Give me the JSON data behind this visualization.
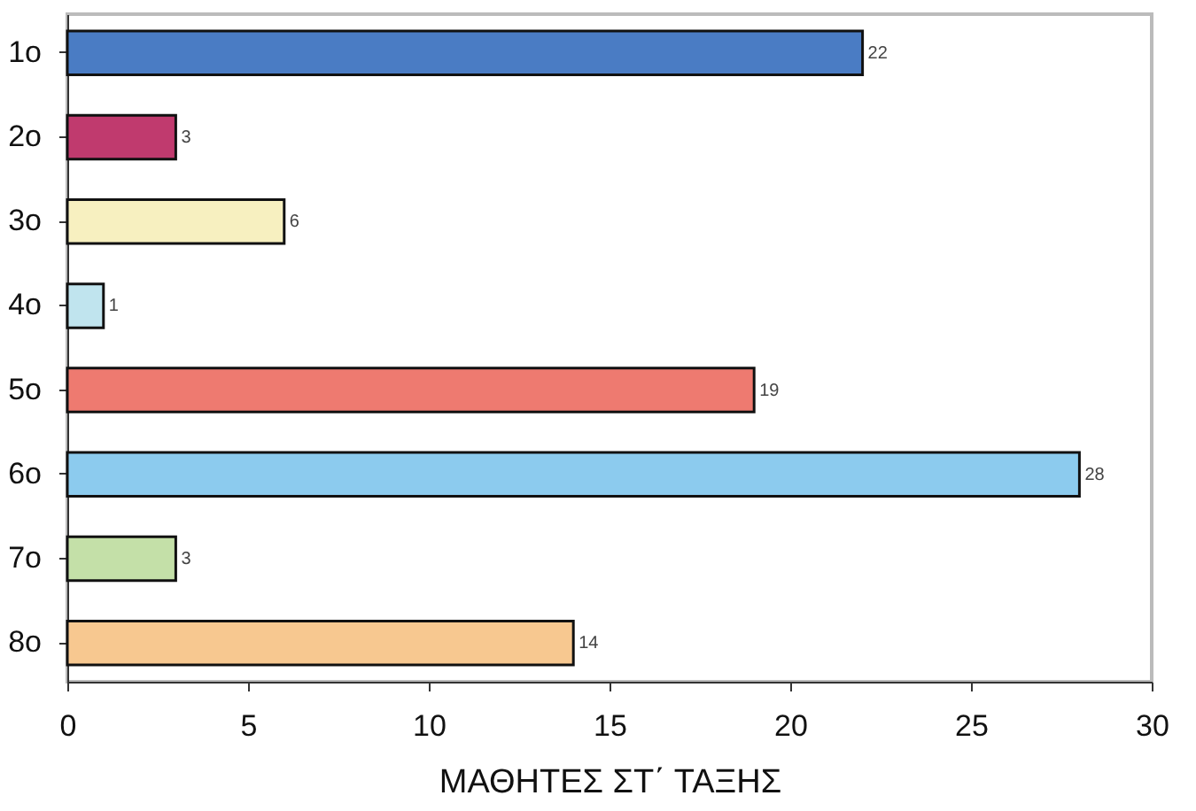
{
  "chart_data": {
    "type": "bar",
    "orientation": "horizontal",
    "xlabel": "ΜΑΘΗΤΕΣ ΣΤ΄ ΤΑΞΗΣ",
    "categories": [
      "1ο",
      "2ο",
      "3ο",
      "4ο",
      "5ο",
      "6ο",
      "7ο",
      "8ο"
    ],
    "values": [
      22,
      3,
      6,
      1,
      19,
      28,
      3,
      14
    ],
    "colors": [
      "#4a7cc4",
      "#c03a6e",
      "#f7f0c0",
      "#c0e4ee",
      "#ee7a70",
      "#8ccbee",
      "#c4e0a8",
      "#f7c890"
    ],
    "xlim": [
      0,
      30
    ],
    "xticks": [
      0,
      5,
      10,
      15,
      20,
      25,
      30
    ],
    "data_labels": true,
    "grid": false
  }
}
